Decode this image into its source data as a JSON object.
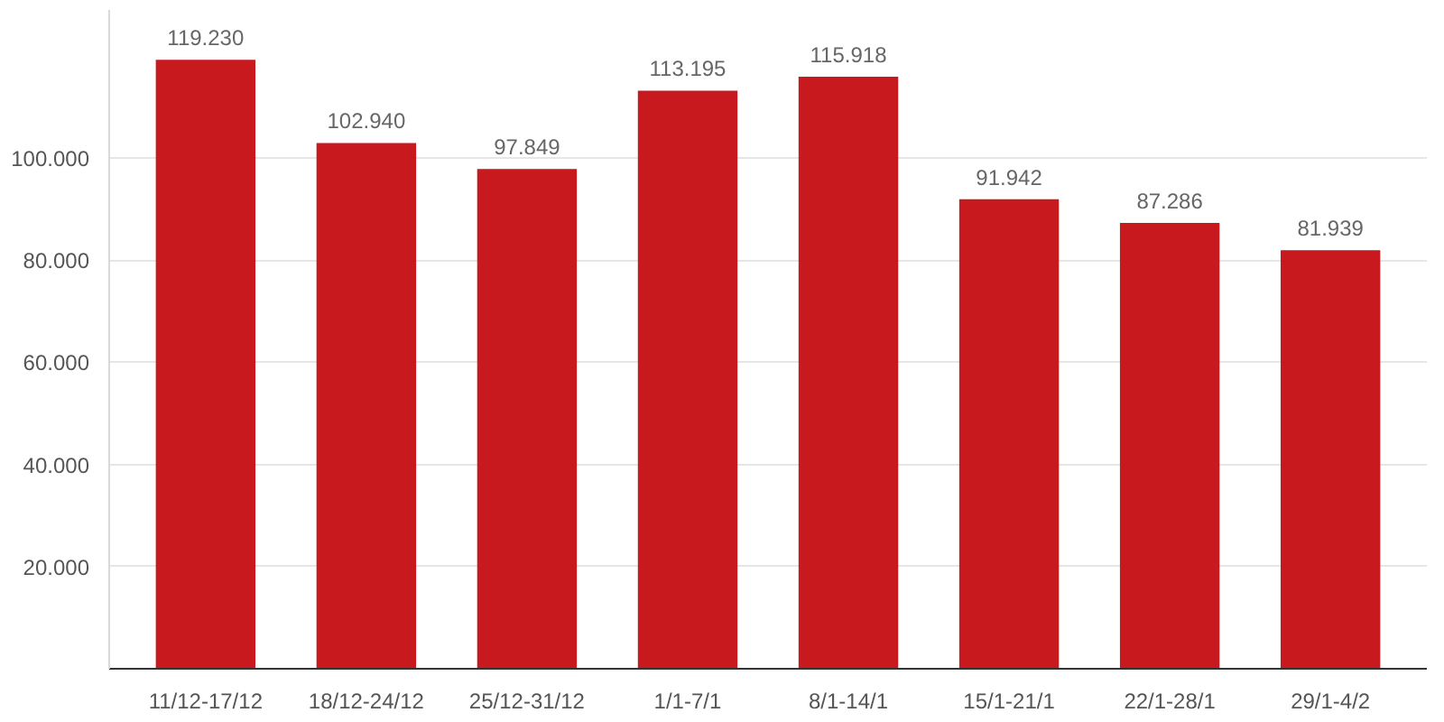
{
  "chart_data": {
    "type": "bar",
    "categories": [
      "11/12-17/12",
      "18/12-24/12",
      "25/12-31/12",
      "1/1-7/1",
      "8/1-14/1",
      "15/1-21/1",
      "22/1-28/1",
      "29/1-4/2"
    ],
    "values": [
      119230,
      102940,
      97849,
      113195,
      115918,
      91942,
      87286,
      81939
    ],
    "value_labels": [
      "119.230",
      "102.940",
      "97.849",
      "113.195",
      "115.918",
      "91.942",
      "87.286",
      "81.939"
    ],
    "color": "#c8191e",
    "ylim": [
      0,
      129000
    ],
    "yticks": [
      {
        "value": 20000,
        "label": "20.000"
      },
      {
        "value": 40000,
        "label": "40.000"
      },
      {
        "value": 60000,
        "label": "60.000"
      },
      {
        "value": 80000,
        "label": "80.000"
      },
      {
        "value": 100000,
        "label": "100.000"
      }
    ],
    "grid": "y"
  }
}
